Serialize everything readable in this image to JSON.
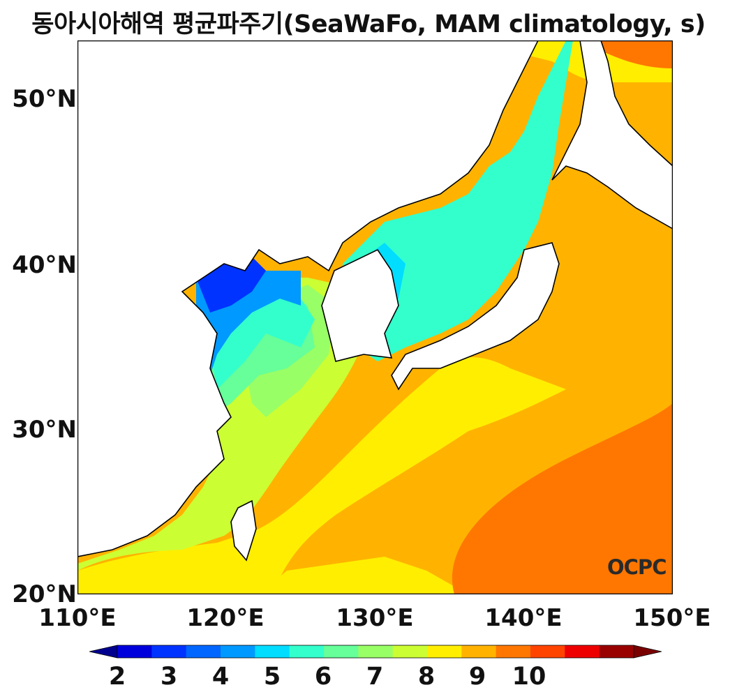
{
  "title": "동아시아해역 평균파주기(SeaWaFo, MAM climatology, s)",
  "logo": "OCPC",
  "lat_ticks": [
    "50°N",
    "40°N",
    "30°N",
    "20°N"
  ],
  "lon_ticks": [
    "110°E",
    "120°E",
    "130°E",
    "140°E",
    "150°E"
  ],
  "colorbar": {
    "labels": [
      "2",
      "3",
      "4",
      "5",
      "6",
      "7",
      "8",
      "9",
      "10"
    ],
    "colors": [
      "#00008f",
      "#0000dd",
      "#0033ff",
      "#0066ff",
      "#0099ff",
      "#00ddff",
      "#33ffcc",
      "#66ff99",
      "#99ff66",
      "#ccff33",
      "#ffee00",
      "#ffb300",
      "#ff7700",
      "#ff4400",
      "#ee0000",
      "#990000",
      "#7a0000"
    ]
  },
  "colors": {
    "land": "#ffffff",
    "coast": "#000000"
  }
}
